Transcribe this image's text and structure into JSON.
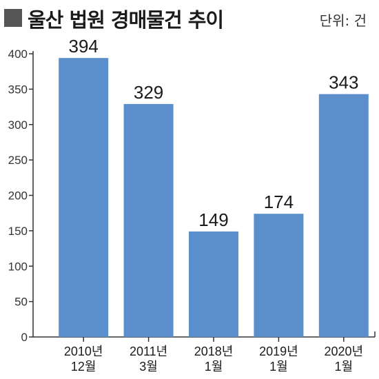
{
  "header": {
    "title": "울산 법원 경매물건 추이",
    "unit": "단위: 건"
  },
  "colors": {
    "bar": "#5b8fcc",
    "title_square": "#555555",
    "axis": "#333333"
  },
  "chart_data": {
    "type": "bar",
    "title": "울산 법원 경매물건 추이",
    "xlabel": "",
    "ylabel": "",
    "unit": "단위: 건",
    "ylim": [
      0,
      400
    ],
    "yticks": [
      0,
      50,
      100,
      150,
      200,
      250,
      300,
      350,
      400
    ],
    "categories": [
      [
        "2010년",
        "12월"
      ],
      [
        "2011년",
        "3월"
      ],
      [
        "2018년",
        "1월"
      ],
      [
        "2019년",
        "1월"
      ],
      [
        "2020년",
        "1월"
      ]
    ],
    "values": [
      394,
      329,
      149,
      174,
      343
    ],
    "grid": false,
    "legend": "none"
  }
}
